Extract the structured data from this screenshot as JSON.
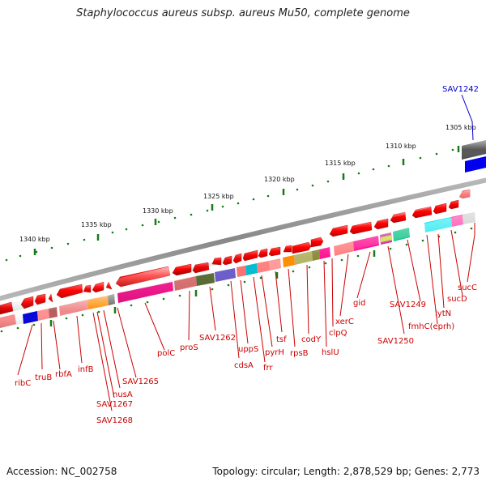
{
  "title": "Staphylococcus aureus subsp. aureus Mu50, complete genome",
  "footer": {
    "accession": "Accession: NC_002758",
    "summary": "Topology: circular; Length: 2,878,529 bp; Genes: 2,773"
  },
  "scale_labels": [
    "1305 kbp",
    "1310 kbp",
    "1315 kbp",
    "1320 kbp",
    "1325 kbp",
    "1330 kbp",
    "1335 kbp",
    "1340 kbp"
  ],
  "gene_labels": [
    "SAV1242",
    "sucC",
    "sucD",
    "lytN",
    "fmhC(eprh)",
    "SAV1249",
    "SAV1250",
    "gid",
    "xerC",
    "clpQ",
    "hslU",
    "codY",
    "rpsB",
    "tsf",
    "pyrH",
    "frr",
    "uppS",
    "cdsA",
    "SAV1262",
    "proS",
    "polC",
    "SAV1265",
    "nusA",
    "SAV1267",
    "SAV1268",
    "infB",
    "rbfA",
    "truB",
    "ribC"
  ],
  "colors": {
    "gene_label": "#cc0000",
    "highlight_label": "#0000cc",
    "tick": "#1a7a1a",
    "backbone": "#888888"
  }
}
